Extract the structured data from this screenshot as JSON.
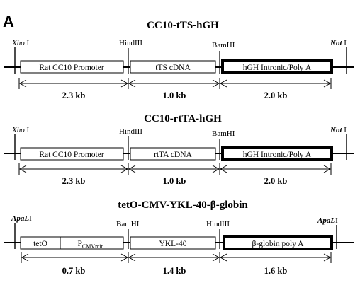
{
  "panel_letter": "A",
  "constructs": [
    {
      "title": "CC10-tTS-hGH",
      "left_site": {
        "italic": "Xho",
        "rest": " I"
      },
      "right_site": {
        "italic": "Not",
        "rest": " I"
      },
      "junction_sites": [
        "HindIII",
        "BamHI"
      ],
      "segments": [
        {
          "label": "Rat CC10 Promoter"
        },
        {
          "label": "tTS cDNA"
        },
        {
          "label": "hGH Intronic/Poly A"
        }
      ],
      "sizes": [
        "2.3 kb",
        "1.0 kb",
        "2.0 kb"
      ]
    },
    {
      "title": "CC10-rtTA-hGH",
      "left_site": {
        "italic": "Xho",
        "rest": " I"
      },
      "right_site": {
        "italic": "Not",
        "rest": " I"
      },
      "junction_sites": [
        "HindIII",
        "BamHI"
      ],
      "segments": [
        {
          "label": "Rat CC10 Promoter"
        },
        {
          "label": "rtTA cDNA"
        },
        {
          "label": "hGH Intronic/Poly A"
        }
      ],
      "sizes": [
        "2.3 kb",
        "1.0 kb",
        "2.0 kb"
      ]
    },
    {
      "title": "tetO-CMV-YKL-40-β-globin",
      "left_site": {
        "italic": "ApaL",
        "rest": "I"
      },
      "right_site": {
        "italic": "ApaL",
        "rest": "I"
      },
      "junction_sites": [
        "BamHI",
        "HindIII"
      ],
      "segments": [
        {
          "label": "tetO",
          "label2_main": "P",
          "label2_sub": "CMVmin"
        },
        {
          "label": "YKL-40"
        },
        {
          "label": "β-globin poly A"
        }
      ],
      "sizes": [
        "0.7 kb",
        "1.4 kb",
        "1.6 kb"
      ]
    }
  ],
  "colors": {
    "line": "#000000",
    "box_fill": "#ffffff",
    "thick_box_border": "#000000",
    "background": "#ffffff"
  }
}
